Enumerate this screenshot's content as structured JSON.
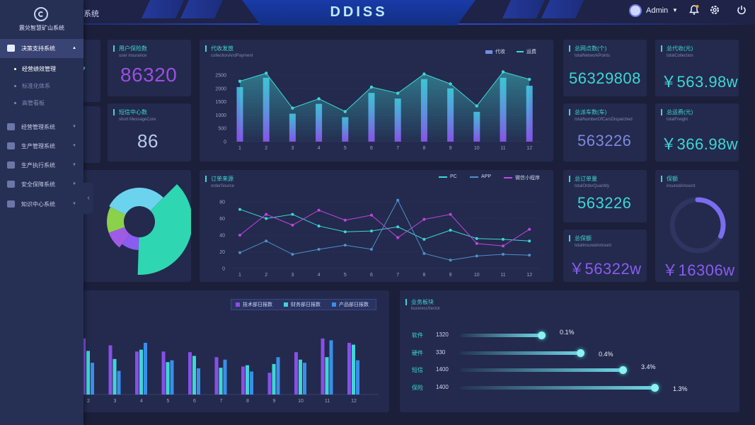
{
  "header": {
    "title": "DDISS",
    "breadcrumb": "系统",
    "user": "Admin"
  },
  "sidebar": {
    "logo_text": "震兑智慧矿山系统",
    "items": [
      {
        "label": "决策支持系统",
        "active": true
      },
      {
        "label": "经营管理系统"
      },
      {
        "label": "生产管理系统"
      },
      {
        "label": "生产执行系统"
      },
      {
        "label": "安全保障系统"
      },
      {
        "label": "知识中心系统"
      }
    ],
    "subitems": [
      {
        "label": "经营绩效管理",
        "active": true
      },
      {
        "label": "标准化体系"
      },
      {
        "label": "高管看板"
      }
    ]
  },
  "stats": {
    "user_insurance": {
      "title": "用户保险数",
      "sub": "user insurance",
      "value": "86320"
    },
    "sms": {
      "title": "短信中心数",
      "sub": "short MessageCore",
      "value": "86"
    },
    "network": {
      "title": "总网点数(个)",
      "sub": "totalNetworkPoints",
      "value": "56329808"
    },
    "collection": {
      "title": "总代收(元)",
      "sub": "totalCollection",
      "value": "￥563.98w"
    },
    "dispatched": {
      "title": "总派车数(车)",
      "sub": "totalNumberOfCarsDispatched",
      "value": "563226"
    },
    "freight": {
      "title": "总运费(元)",
      "sub": "totalFreight",
      "value": "￥366.98w"
    },
    "orders": {
      "title": "总订单量",
      "sub": "totalOrderQuantity",
      "value": "563226"
    },
    "insured_total": {
      "title": "总保额",
      "sub": "totalInsuredAmount",
      "value": "￥56322w"
    },
    "insured": {
      "title": "保额",
      "sub": "insuredAmount",
      "value": "￥16306w",
      "ring_fraction": 0.32
    },
    "partial_left": "7"
  },
  "chart_data": [
    {
      "type": "bar",
      "title": "代收发放",
      "subtitle": "collectionAndPayment",
      "categories": [
        "1",
        "2",
        "3",
        "4",
        "5",
        "6",
        "7",
        "8",
        "9",
        "10",
        "11",
        "12"
      ],
      "series": [
        {
          "name": "代收",
          "values": [
            2050,
            2400,
            1050,
            1420,
            920,
            1830,
            1620,
            2350,
            2000,
            1120,
            2400,
            2100
          ]
        },
        {
          "name": "运费",
          "values": [
            2270,
            2570,
            1260,
            1610,
            1130,
            2050,
            1820,
            2540,
            2170,
            1340,
            2620,
            2340
          ]
        }
      ],
      "ylim": [
        0,
        2500
      ],
      "yticks": [
        "0",
        "500",
        "1000",
        "1500",
        "2000",
        "2500"
      ]
    },
    {
      "type": "line",
      "title": "订单来源",
      "subtitle": "orderSource",
      "categories": [
        "1",
        "2",
        "3",
        "4",
        "5",
        "6",
        "7",
        "8",
        "9",
        "10",
        "11",
        "12"
      ],
      "series": [
        {
          "name": "PC",
          "values": [
            71,
            60,
            65,
            51,
            44,
            45,
            50,
            35,
            46,
            36,
            35,
            33
          ]
        },
        {
          "name": "APP",
          "values": [
            19,
            33,
            17,
            23,
            28,
            23,
            82,
            18,
            10,
            15,
            17,
            16
          ]
        },
        {
          "name": "微信小程序",
          "values": [
            40,
            65,
            52,
            70,
            58,
            64,
            37,
            59,
            65,
            30,
            27,
            47
          ]
        }
      ],
      "ylim": [
        0,
        80
      ],
      "yticks": [
        "0",
        "20",
        "40",
        "60",
        "80"
      ]
    },
    {
      "type": "bar",
      "categories": [
        "2",
        "3",
        "4",
        "5",
        "6",
        "7",
        "8",
        "9",
        "10",
        "11",
        "12"
      ],
      "series": [
        {
          "name": "技术部日报数",
          "values": [
            90,
            79,
            69,
            69,
            68,
            60,
            45,
            35,
            68,
            90,
            83
          ]
        },
        {
          "name": "财务部日报数",
          "values": [
            70,
            57,
            72,
            52,
            62,
            43,
            47,
            49,
            56,
            60,
            80
          ]
        },
        {
          "name": "产品部日报数",
          "values": [
            51,
            38,
            83,
            55,
            42,
            56,
            37,
            60,
            51,
            87,
            55
          ]
        }
      ],
      "ylim": [
        0,
        100
      ]
    },
    {
      "type": "pie",
      "slices": [
        {
          "value": 30,
          "color": "#6cd3ee"
        },
        {
          "value": 38,
          "color": "#2fd6b2"
        },
        {
          "value": 10,
          "color": "#8a5cf0"
        },
        {
          "value": 9,
          "color": "#a05be6"
        },
        {
          "value": 13,
          "color": "#8bd14a"
        }
      ]
    }
  ],
  "business": {
    "title": "业务板块",
    "sub": "businessSector",
    "rows": [
      {
        "name": "软件",
        "count": "1320",
        "pct": "0.1%",
        "fill": 0.36
      },
      {
        "name": "硬件",
        "count": "330",
        "pct": "0.4%",
        "fill": 0.53
      },
      {
        "name": "短信",
        "count": "1400",
        "pct": "3.4%",
        "fill": 0.72
      },
      {
        "name": "保险",
        "count": "1400",
        "pct": "1.3%",
        "fill": 0.86
      }
    ]
  },
  "colors": {
    "accent": "#3fd6d6",
    "purple": "#8a4ee8",
    "blue": "#3a76f0"
  }
}
